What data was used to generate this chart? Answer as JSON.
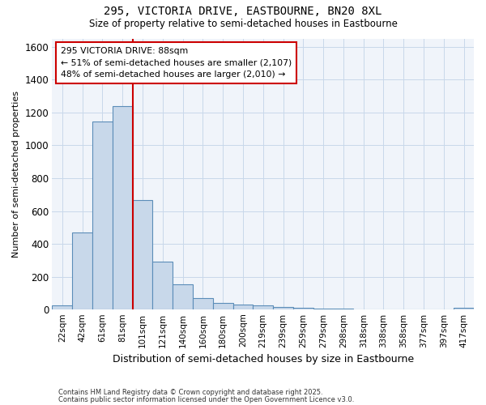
{
  "title1": "295, VICTORIA DRIVE, EASTBOURNE, BN20 8XL",
  "title2": "Size of property relative to semi-detached houses in Eastbourne",
  "xlabel": "Distribution of semi-detached houses by size in Eastbourne",
  "ylabel": "Number of semi-detached properties",
  "categories": [
    "22sqm",
    "42sqm",
    "61sqm",
    "81sqm",
    "101sqm",
    "121sqm",
    "140sqm",
    "160sqm",
    "180sqm",
    "200sqm",
    "219sqm",
    "239sqm",
    "259sqm",
    "279sqm",
    "298sqm",
    "318sqm",
    "338sqm",
    "358sqm",
    "377sqm",
    "397sqm",
    "417sqm"
  ],
  "values": [
    25,
    470,
    1145,
    1240,
    665,
    295,
    155,
    70,
    40,
    30,
    25,
    15,
    10,
    8,
    5,
    4,
    3,
    2,
    2,
    2,
    10
  ],
  "bar_color": "#c8d8ea",
  "bar_edge_color": "#5b8db8",
  "grid_color": "#c8d8ea",
  "background_color": "#ffffff",
  "axes_background": "#f0f4fa",
  "vline_x_index": 3,
  "vline_color": "#cc0000",
  "annotation_title": "295 VICTORIA DRIVE: 88sqm",
  "annotation_line1": "← 51% of semi-detached houses are smaller (2,107)",
  "annotation_line2": "48% of semi-detached houses are larger (2,010) →",
  "annotation_box_color": "#ffffff",
  "annotation_box_edge": "#cc0000",
  "ylim": [
    0,
    1650
  ],
  "yticks": [
    0,
    200,
    400,
    600,
    800,
    1000,
    1200,
    1400,
    1600
  ],
  "footnote1": "Contains HM Land Registry data © Crown copyright and database right 2025.",
  "footnote2": "Contains public sector information licensed under the Open Government Licence v3.0."
}
